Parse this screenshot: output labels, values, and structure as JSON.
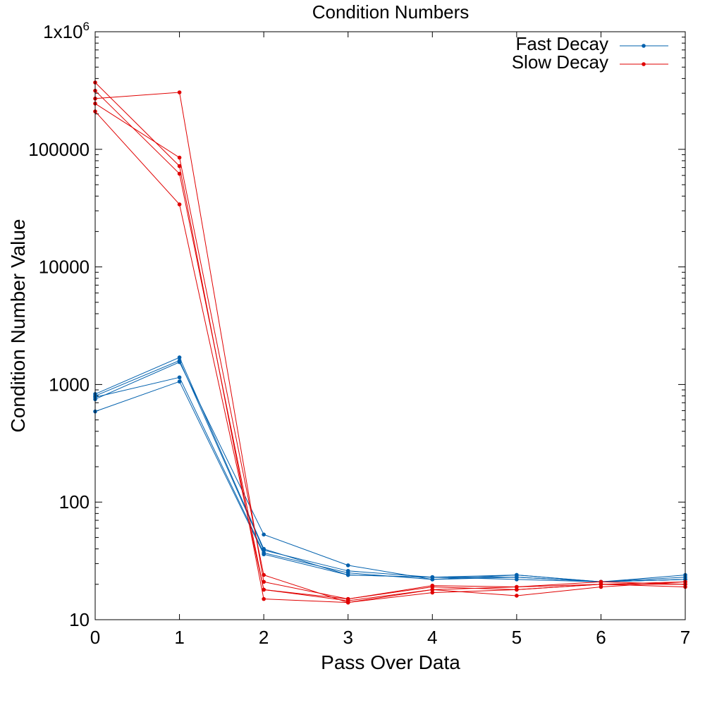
{
  "chart_data": {
    "type": "line",
    "title": "Condition Numbers",
    "xlabel": "Pass Over Data",
    "ylabel": "Condition Number Value",
    "xlim": [
      0,
      7
    ],
    "ylim": [
      10,
      1000000
    ],
    "yscale": "log",
    "grid": false,
    "legend_position": "top-right",
    "x": [
      0,
      1,
      2,
      3,
      4,
      5,
      6,
      7
    ],
    "x_tick_labels": [
      "0",
      "1",
      "2",
      "3",
      "4",
      "5",
      "6",
      "7"
    ],
    "y_ticks": [
      10,
      100,
      1000,
      10000,
      100000,
      1000000
    ],
    "y_tick_labels": [
      "10",
      "100",
      "1000",
      "10000",
      "100000",
      "1x10^6"
    ],
    "groups": [
      {
        "name": "Fast Decay",
        "color": "#0060ad",
        "series": [
          [
            830,
            1700,
            40,
            24,
            23,
            23,
            21,
            24
          ],
          [
            800,
            1600,
            39,
            26,
            23,
            22,
            21,
            23
          ],
          [
            780,
            1150,
            37,
            25,
            22,
            23,
            21,
            22
          ],
          [
            750,
            1550,
            53,
            29,
            22,
            24,
            21,
            22
          ],
          [
            590,
            1060,
            36,
            24,
            23,
            24,
            21,
            22
          ]
        ]
      },
      {
        "name": "Slow Decay",
        "color": "#e00000",
        "series": [
          [
            370000,
            72000,
            15,
            14,
            17,
            18,
            20,
            21
          ],
          [
            315000,
            62000,
            18,
            14.5,
            18,
            19,
            20,
            20
          ],
          [
            270000,
            305000,
            21,
            15,
            19,
            18,
            20,
            19
          ],
          [
            245000,
            85000,
            24,
            14,
            18,
            16,
            19,
            21
          ],
          [
            210000,
            34000,
            18,
            15,
            19.5,
            19,
            21,
            20
          ]
        ]
      }
    ]
  }
}
